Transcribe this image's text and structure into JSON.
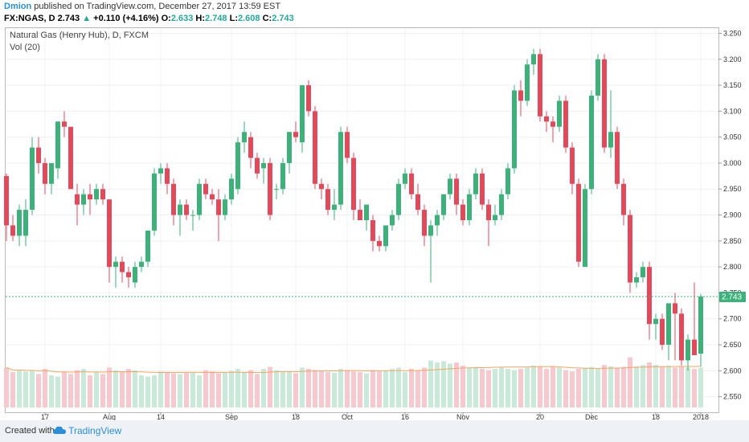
{
  "header": {
    "author": "Dmion",
    "published_text": "published on TradingView.com, December 27, 2017 13:59 EST"
  },
  "ticker": {
    "symbol": "FX:NGAS, D",
    "last": "2.743",
    "arrow": "▲",
    "change": "+0.110 (+4.16%)",
    "o_label": "O:",
    "o_value": "2.633",
    "h_label": "H:",
    "h_value": "2.748",
    "l_label": "L:",
    "l_value": "2.608",
    "c_label": "C:",
    "c_value": "2.743"
  },
  "legend": {
    "title": "Natural Gas (Henry Hub), D, FXCM",
    "volume": "Vol (20)"
  },
  "footer": {
    "created_with": "Created with",
    "brand": "TradingView"
  },
  "colors": {
    "up": "#3cb27a",
    "down": "#e24a5c",
    "vol_up": "#c9ead9",
    "vol_down": "#f8c8cf",
    "vol_ma": "#f4a460",
    "last_price_tag": "#3cb27a",
    "grid": "#eef0f3"
  },
  "chart_data": {
    "type": "candlestick",
    "symbol": "FX:NGAS",
    "interval": "D",
    "ylim": [
      2.52,
      3.26
    ],
    "y_ticks": [
      "3.250",
      "3.200",
      "3.150",
      "3.100",
      "3.050",
      "3.000",
      "2.950",
      "2.900",
      "2.850",
      "2.800",
      "2.750",
      "2.700",
      "2.650",
      "2.600",
      "2.550"
    ],
    "x_tick_labels": [
      "17",
      "Aug",
      "14",
      "Sep",
      "18",
      "Oct",
      "16",
      "Nov",
      "20",
      "Dec",
      "18",
      "2018"
    ],
    "x_tick_index": [
      6,
      16,
      24,
      35,
      45,
      53,
      62,
      71,
      83,
      91,
      101,
      108
    ],
    "last_price": 2.743,
    "last_price_label": "2.743",
    "volume_ma_period": 20,
    "candles": [
      {
        "o": 2.975,
        "h": 2.98,
        "l": 2.85,
        "c": 2.88,
        "v": 0.62
      },
      {
        "o": 2.88,
        "h": 2.9,
        "l": 2.85,
        "c": 2.86,
        "v": 0.55
      },
      {
        "o": 2.86,
        "h": 2.92,
        "l": 2.84,
        "c": 2.91,
        "v": 0.58
      },
      {
        "o": 2.86,
        "h": 2.93,
        "l": 2.84,
        "c": 2.91,
        "v": 0.56
      },
      {
        "o": 2.91,
        "h": 3.05,
        "l": 2.9,
        "c": 3.03,
        "v": 0.57
      },
      {
        "o": 3.03,
        "h": 3.05,
        "l": 2.98,
        "c": 3.0,
        "v": 0.52
      },
      {
        "o": 3.0,
        "h": 3.01,
        "l": 2.94,
        "c": 2.96,
        "v": 0.6
      },
      {
        "o": 2.96,
        "h": 3.0,
        "l": 2.94,
        "c": 3.0,
        "v": 0.5
      },
      {
        "o": 2.99,
        "h": 3.08,
        "l": 2.97,
        "c": 3.08,
        "v": 0.48
      },
      {
        "o": 3.08,
        "h": 3.1,
        "l": 3.05,
        "c": 3.07,
        "v": 0.55
      },
      {
        "o": 3.07,
        "h": 3.07,
        "l": 2.95,
        "c": 2.95,
        "v": 0.52
      },
      {
        "o": 2.94,
        "h": 2.96,
        "l": 2.88,
        "c": 2.92,
        "v": 0.58
      },
      {
        "o": 2.92,
        "h": 2.95,
        "l": 2.9,
        "c": 2.94,
        "v": 0.6
      },
      {
        "o": 2.94,
        "h": 2.96,
        "l": 2.9,
        "c": 2.93,
        "v": 0.5
      },
      {
        "o": 2.93,
        "h": 2.96,
        "l": 2.92,
        "c": 2.95,
        "v": 0.55
      },
      {
        "o": 2.95,
        "h": 2.96,
        "l": 2.92,
        "c": 2.93,
        "v": 0.52
      },
      {
        "o": 2.93,
        "h": 2.93,
        "l": 2.77,
        "c": 2.8,
        "v": 0.62
      },
      {
        "o": 2.8,
        "h": 2.82,
        "l": 2.76,
        "c": 2.81,
        "v": 0.58
      },
      {
        "o": 2.81,
        "h": 2.82,
        "l": 2.77,
        "c": 2.79,
        "v": 0.55
      },
      {
        "o": 2.79,
        "h": 2.8,
        "l": 2.76,
        "c": 2.78,
        "v": 0.6
      },
      {
        "o": 2.77,
        "h": 2.81,
        "l": 2.76,
        "c": 2.8,
        "v": 0.58
      },
      {
        "o": 2.8,
        "h": 2.82,
        "l": 2.79,
        "c": 2.81,
        "v": 0.5
      },
      {
        "o": 2.81,
        "h": 2.87,
        "l": 2.8,
        "c": 2.87,
        "v": 0.48
      },
      {
        "o": 2.87,
        "h": 2.99,
        "l": 2.86,
        "c": 2.98,
        "v": 0.5
      },
      {
        "o": 2.98,
        "h": 3.0,
        "l": 2.96,
        "c": 2.99,
        "v": 0.56
      },
      {
        "o": 2.99,
        "h": 3.0,
        "l": 2.94,
        "c": 2.96,
        "v": 0.55
      },
      {
        "o": 2.96,
        "h": 2.97,
        "l": 2.88,
        "c": 2.9,
        "v": 0.53
      },
      {
        "o": 2.9,
        "h": 2.93,
        "l": 2.86,
        "c": 2.92,
        "v": 0.52
      },
      {
        "o": 2.92,
        "h": 2.93,
        "l": 2.89,
        "c": 2.9,
        "v": 0.54
      },
      {
        "o": 2.9,
        "h": 2.91,
        "l": 2.87,
        "c": 2.9,
        "v": 0.55
      },
      {
        "o": 2.9,
        "h": 2.97,
        "l": 2.89,
        "c": 2.96,
        "v": 0.5
      },
      {
        "o": 2.96,
        "h": 2.97,
        "l": 2.93,
        "c": 2.94,
        "v": 0.58
      },
      {
        "o": 2.94,
        "h": 2.95,
        "l": 2.92,
        "c": 2.93,
        "v": 0.56
      },
      {
        "o": 2.93,
        "h": 2.95,
        "l": 2.85,
        "c": 2.9,
        "v": 0.53
      },
      {
        "o": 2.9,
        "h": 2.94,
        "l": 2.89,
        "c": 2.93,
        "v": 0.55
      },
      {
        "o": 2.93,
        "h": 2.98,
        "l": 2.92,
        "c": 2.97,
        "v": 0.57
      },
      {
        "o": 2.95,
        "h": 3.05,
        "l": 2.94,
        "c": 3.04,
        "v": 0.6
      },
      {
        "o": 3.04,
        "h": 3.08,
        "l": 3.02,
        "c": 3.06,
        "v": 0.55
      },
      {
        "o": 3.05,
        "h": 3.06,
        "l": 2.99,
        "c": 3.01,
        "v": 0.58
      },
      {
        "o": 3.01,
        "h": 3.02,
        "l": 2.97,
        "c": 2.98,
        "v": 0.52
      },
      {
        "o": 2.99,
        "h": 3.01,
        "l": 2.96,
        "c": 3.0,
        "v": 0.6
      },
      {
        "o": 3.0,
        "h": 3.01,
        "l": 2.89,
        "c": 2.9,
        "v": 0.63
      },
      {
        "o": 2.95,
        "h": 2.96,
        "l": 2.93,
        "c": 2.95,
        "v": 0.58
      },
      {
        "o": 2.95,
        "h": 3.01,
        "l": 2.94,
        "c": 3.0,
        "v": 0.55
      },
      {
        "o": 3.0,
        "h": 3.06,
        "l": 2.98,
        "c": 3.06,
        "v": 0.56
      },
      {
        "o": 3.06,
        "h": 3.08,
        "l": 3.04,
        "c": 3.05,
        "v": 0.53
      },
      {
        "o": 3.04,
        "h": 3.15,
        "l": 3.02,
        "c": 3.15,
        "v": 0.62
      },
      {
        "o": 3.15,
        "h": 3.16,
        "l": 3.09,
        "c": 3.1,
        "v": 0.6
      },
      {
        "o": 3.1,
        "h": 3.11,
        "l": 2.95,
        "c": 2.96,
        "v": 0.58
      },
      {
        "o": 2.96,
        "h": 2.97,
        "l": 2.93,
        "c": 2.95,
        "v": 0.57
      },
      {
        "o": 2.95,
        "h": 2.96,
        "l": 2.9,
        "c": 2.91,
        "v": 0.55
      },
      {
        "o": 2.91,
        "h": 2.95,
        "l": 2.89,
        "c": 2.92,
        "v": 0.54
      },
      {
        "o": 2.92,
        "h": 3.07,
        "l": 2.91,
        "c": 3.06,
        "v": 0.6
      },
      {
        "o": 3.06,
        "h": 3.07,
        "l": 3.0,
        "c": 3.01,
        "v": 0.58
      },
      {
        "o": 3.01,
        "h": 3.02,
        "l": 2.89,
        "c": 2.91,
        "v": 0.56
      },
      {
        "o": 2.91,
        "h": 2.93,
        "l": 2.89,
        "c": 2.89,
        "v": 0.55
      },
      {
        "o": 2.89,
        "h": 2.92,
        "l": 2.87,
        "c": 2.92,
        "v": 0.53
      },
      {
        "o": 2.89,
        "h": 2.9,
        "l": 2.83,
        "c": 2.85,
        "v": 0.58
      },
      {
        "o": 2.85,
        "h": 2.86,
        "l": 2.83,
        "c": 2.84,
        "v": 0.56
      },
      {
        "o": 2.84,
        "h": 2.88,
        "l": 2.83,
        "c": 2.88,
        "v": 0.57
      },
      {
        "o": 2.88,
        "h": 2.91,
        "l": 2.87,
        "c": 2.9,
        "v": 0.6
      },
      {
        "o": 2.9,
        "h": 2.97,
        "l": 2.89,
        "c": 2.96,
        "v": 0.62
      },
      {
        "o": 2.96,
        "h": 2.99,
        "l": 2.95,
        "c": 2.98,
        "v": 0.55
      },
      {
        "o": 2.98,
        "h": 2.99,
        "l": 2.93,
        "c": 2.94,
        "v": 0.6
      },
      {
        "o": 2.94,
        "h": 2.96,
        "l": 2.9,
        "c": 2.91,
        "v": 0.58
      },
      {
        "o": 2.91,
        "h": 2.92,
        "l": 2.84,
        "c": 2.86,
        "v": 0.62
      },
      {
        "o": 2.86,
        "h": 2.89,
        "l": 2.77,
        "c": 2.88,
        "v": 0.73
      },
      {
        "o": 2.88,
        "h": 2.91,
        "l": 2.86,
        "c": 2.9,
        "v": 0.7
      },
      {
        "o": 2.9,
        "h": 2.94,
        "l": 2.89,
        "c": 2.94,
        "v": 0.72
      },
      {
        "o": 2.94,
        "h": 2.98,
        "l": 2.93,
        "c": 2.97,
        "v": 0.68
      },
      {
        "o": 2.97,
        "h": 2.98,
        "l": 2.9,
        "c": 2.92,
        "v": 0.7
      },
      {
        "o": 2.92,
        "h": 2.93,
        "l": 2.88,
        "c": 2.89,
        "v": 0.65
      },
      {
        "o": 2.89,
        "h": 2.95,
        "l": 2.88,
        "c": 2.94,
        "v": 0.62
      },
      {
        "o": 2.94,
        "h": 2.99,
        "l": 2.93,
        "c": 2.98,
        "v": 0.63
      },
      {
        "o": 2.98,
        "h": 2.99,
        "l": 2.91,
        "c": 2.92,
        "v": 0.6
      },
      {
        "o": 2.92,
        "h": 2.93,
        "l": 2.84,
        "c": 2.89,
        "v": 0.58
      },
      {
        "o": 2.89,
        "h": 2.92,
        "l": 2.88,
        "c": 2.9,
        "v": 0.6
      },
      {
        "o": 2.9,
        "h": 2.95,
        "l": 2.89,
        "c": 2.94,
        "v": 0.62
      },
      {
        "o": 2.94,
        "h": 3.0,
        "l": 2.93,
        "c": 2.99,
        "v": 0.6
      },
      {
        "o": 2.99,
        "h": 3.15,
        "l": 2.98,
        "c": 3.14,
        "v": 0.58
      },
      {
        "o": 3.14,
        "h": 3.16,
        "l": 3.09,
        "c": 3.12,
        "v": 0.6
      },
      {
        "o": 3.12,
        "h": 3.2,
        "l": 3.11,
        "c": 3.19,
        "v": 0.62
      },
      {
        "o": 3.19,
        "h": 3.22,
        "l": 3.17,
        "c": 3.21,
        "v": 0.65
      },
      {
        "o": 3.21,
        "h": 3.22,
        "l": 3.08,
        "c": 3.09,
        "v": 0.63
      },
      {
        "o": 3.09,
        "h": 3.1,
        "l": 3.06,
        "c": 3.08,
        "v": 0.6
      },
      {
        "o": 3.08,
        "h": 3.09,
        "l": 3.04,
        "c": 3.07,
        "v": 0.63
      },
      {
        "o": 3.07,
        "h": 3.13,
        "l": 3.06,
        "c": 3.12,
        "v": 0.62
      },
      {
        "o": 3.12,
        "h": 3.13,
        "l": 3.02,
        "c": 3.03,
        "v": 0.58
      },
      {
        "o": 3.03,
        "h": 3.04,
        "l": 2.94,
        "c": 2.96,
        "v": 0.56
      },
      {
        "o": 2.96,
        "h": 2.97,
        "l": 2.8,
        "c": 2.81,
        "v": 0.6
      },
      {
        "o": 2.8,
        "h": 2.96,
        "l": 2.8,
        "c": 2.95,
        "v": 0.62
      },
      {
        "o": 2.95,
        "h": 3.14,
        "l": 2.94,
        "c": 3.13,
        "v": 0.63
      },
      {
        "o": 3.13,
        "h": 3.21,
        "l": 3.12,
        "c": 3.2,
        "v": 0.6
      },
      {
        "o": 3.2,
        "h": 3.21,
        "l": 3.02,
        "c": 3.03,
        "v": 0.66
      },
      {
        "o": 3.03,
        "h": 3.14,
        "l": 3.01,
        "c": 3.06,
        "v": 0.64
      },
      {
        "o": 3.06,
        "h": 3.07,
        "l": 2.95,
        "c": 2.96,
        "v": 0.62
      },
      {
        "o": 2.96,
        "h": 2.97,
        "l": 2.88,
        "c": 2.9,
        "v": 0.63
      },
      {
        "o": 2.9,
        "h": 2.91,
        "l": 2.75,
        "c": 2.77,
        "v": 0.78
      },
      {
        "o": 2.77,
        "h": 2.79,
        "l": 2.76,
        "c": 2.78,
        "v": 0.64
      },
      {
        "o": 2.78,
        "h": 2.81,
        "l": 2.77,
        "c": 2.8,
        "v": 0.66
      },
      {
        "o": 2.8,
        "h": 2.81,
        "l": 2.66,
        "c": 2.69,
        "v": 0.7
      },
      {
        "o": 2.69,
        "h": 2.71,
        "l": 2.66,
        "c": 2.7,
        "v": 0.66
      },
      {
        "o": 2.7,
        "h": 2.71,
        "l": 2.64,
        "c": 2.65,
        "v": 0.63
      },
      {
        "o": 2.65,
        "h": 2.73,
        "l": 2.62,
        "c": 2.73,
        "v": 0.65
      },
      {
        "o": 2.73,
        "h": 2.75,
        "l": 2.62,
        "c": 2.71,
        "v": 0.62
      },
      {
        "o": 2.71,
        "h": 2.72,
        "l": 2.61,
        "c": 2.62,
        "v": 0.64
      },
      {
        "o": 2.62,
        "h": 2.67,
        "l": 2.6,
        "c": 2.66,
        "v": 0.62
      },
      {
        "o": 2.66,
        "h": 2.77,
        "l": 2.63,
        "c": 2.63,
        "v": 0.6
      },
      {
        "o": 2.633,
        "h": 2.748,
        "l": 2.608,
        "c": 2.743,
        "v": 0.62
      }
    ]
  }
}
